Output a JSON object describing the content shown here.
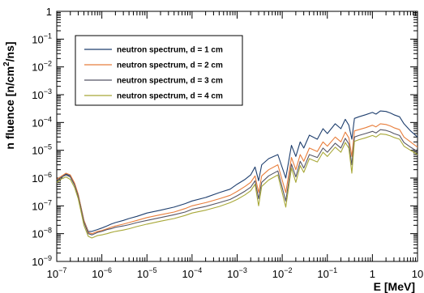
{
  "chart_data": {
    "type": "line",
    "title": "",
    "xlabel": "E [MeV]",
    "ylabel_parts": [
      "n fluence [n/cm",
      "2",
      "/ns]"
    ],
    "x_scale": "log",
    "y_scale": "log",
    "xlim": [
      1e-07,
      10
    ],
    "ylim": [
      1e-09,
      1
    ],
    "x_ticks": [
      {
        "base": "10",
        "exp": "−7"
      },
      {
        "base": "10",
        "exp": "−6"
      },
      {
        "base": "10",
        "exp": "−5"
      },
      {
        "base": "10",
        "exp": "−4"
      },
      {
        "base": "10",
        "exp": "−3"
      },
      {
        "base": "10",
        "exp": "−2"
      },
      {
        "base": "10",
        "exp": "−1"
      },
      {
        "base": "1",
        "exp": ""
      },
      {
        "base": "10",
        "exp": ""
      }
    ],
    "y_ticks": [
      {
        "base": "10",
        "exp": "−9"
      },
      {
        "base": "10",
        "exp": "−8"
      },
      {
        "base": "10",
        "exp": "−7"
      },
      {
        "base": "10",
        "exp": "−6"
      },
      {
        "base": "10",
        "exp": "−5"
      },
      {
        "base": "10",
        "exp": "−4"
      },
      {
        "base": "10",
        "exp": "−3"
      },
      {
        "base": "10",
        "exp": "−2"
      },
      {
        "base": "10",
        "exp": "−1"
      },
      {
        "base": "1",
        "exp": ""
      }
    ],
    "grid": false,
    "legend_position": "top-left",
    "series": [
      {
        "name": "neutron spectrum, d = 1 cm",
        "color": "#1f3f6e",
        "x": [
          1e-07,
          1.3e-07,
          1.6e-07,
          2e-07,
          2.5e-07,
          3e-07,
          3.5e-07,
          4e-07,
          5e-07,
          6e-07,
          8e-07,
          1e-06,
          1.3e-06,
          1.6e-06,
          2e-06,
          3e-06,
          4e-06,
          6e-06,
          1e-05,
          2e-05,
          4e-05,
          7e-05,
          0.0001,
          0.0002,
          0.0004,
          0.0007,
          0.001,
          0.0015,
          0.002,
          0.0025,
          0.003,
          0.0035,
          0.005,
          0.008,
          0.012,
          0.016,
          0.02,
          0.025,
          0.03,
          0.04,
          0.06,
          0.08,
          0.1,
          0.15,
          0.2,
          0.25,
          0.3,
          0.35,
          0.4,
          0.5,
          0.7,
          1,
          1.2,
          1.5,
          2,
          2.5,
          3,
          4,
          5,
          7,
          10
        ],
        "y": [
          8e-07,
          1.1e-06,
          1.4e-06,
          1.2e-06,
          6e-07,
          2.5e-07,
          8e-08,
          3e-08,
          1.2e-08,
          1.2e-08,
          1.4e-08,
          1.6e-08,
          1.9e-08,
          2.2e-08,
          2.5e-08,
          3e-08,
          3.5e-08,
          4.2e-08,
          5.5e-08,
          7e-08,
          9e-08,
          1.2e-07,
          1.5e-07,
          2e-07,
          3e-07,
          4e-07,
          6e-07,
          9e-07,
          1.3e-06,
          2.5e-06,
          8e-07,
          3e-06,
          5e-06,
          7e-06,
          1e-06,
          1.5e-05,
          6e-06,
          2e-05,
          1.2e-05,
          3.5e-05,
          2.5e-05,
          6e-05,
          4e-05,
          9e-05,
          6e-05,
          0.00013,
          8e-05,
          2.5e-05,
          0.00014,
          0.00016,
          0.00019,
          0.00023,
          0.0002,
          0.00026,
          0.00025,
          0.00022,
          0.00019,
          0.00016,
          9e-05,
          5e-05,
          3e-05
        ]
      },
      {
        "name": "neutron spectrum, d = 2 cm",
        "color": "#e87e3c",
        "x": [
          1e-07,
          1.3e-07,
          1.6e-07,
          2e-07,
          2.5e-07,
          3e-07,
          3.5e-07,
          4e-07,
          5e-07,
          6e-07,
          8e-07,
          1e-06,
          1.3e-06,
          1.6e-06,
          2e-06,
          3e-06,
          4e-06,
          6e-06,
          1e-05,
          2e-05,
          4e-05,
          7e-05,
          0.0001,
          0.0002,
          0.0004,
          0.0007,
          0.001,
          0.0015,
          0.002,
          0.0025,
          0.003,
          0.0035,
          0.005,
          0.008,
          0.012,
          0.016,
          0.02,
          0.025,
          0.03,
          0.04,
          0.06,
          0.08,
          0.1,
          0.15,
          0.2,
          0.25,
          0.3,
          0.35,
          0.4,
          0.5,
          0.7,
          1,
          1.2,
          1.5,
          2,
          2.5,
          3,
          4,
          5,
          7,
          10
        ],
        "y": [
          9e-07,
          1.2e-06,
          1.5e-06,
          1.3e-06,
          6.5e-07,
          2.6e-07,
          8e-08,
          3e-08,
          1.1e-08,
          1e-08,
          1.2e-08,
          1.3e-08,
          1.5e-08,
          1.7e-08,
          1.9e-08,
          2.2e-08,
          2.5e-08,
          3e-08,
          3.8e-08,
          4.8e-08,
          6e-08,
          8e-08,
          1e-07,
          1.3e-07,
          1.8e-07,
          2.4e-07,
          3.3e-07,
          5e-07,
          7e-07,
          1.2e-06,
          3e-07,
          1.2e-06,
          2e-06,
          3e-06,
          3e-07,
          5.5e-06,
          2e-06,
          7e-06,
          4e-06,
          1.2e-05,
          9e-06,
          2e-05,
          1.4e-05,
          3e-05,
          2e-05,
          4.5e-05,
          2.8e-05,
          6e-06,
          5e-05,
          5.5e-05,
          6.5e-05,
          8e-05,
          7e-05,
          9e-05,
          8.5e-05,
          7.5e-05,
          6.5e-05,
          5.5e-05,
          3e-05,
          2e-05,
          1.3e-05
        ]
      },
      {
        "name": "neutron spectrum, d = 3 cm",
        "color": "#555566",
        "x": [
          1e-07,
          1.3e-07,
          1.6e-07,
          2e-07,
          2.5e-07,
          3e-07,
          3.5e-07,
          4e-07,
          5e-07,
          6e-07,
          8e-07,
          1e-06,
          1.3e-06,
          1.6e-06,
          2e-06,
          3e-06,
          4e-06,
          6e-06,
          1e-05,
          2e-05,
          4e-05,
          7e-05,
          0.0001,
          0.0002,
          0.0004,
          0.0007,
          0.001,
          0.0015,
          0.002,
          0.0025,
          0.003,
          0.0035,
          0.005,
          0.008,
          0.012,
          0.016,
          0.02,
          0.025,
          0.03,
          0.04,
          0.06,
          0.08,
          0.1,
          0.15,
          0.2,
          0.25,
          0.3,
          0.35,
          0.4,
          0.5,
          0.7,
          1,
          1.2,
          1.5,
          2,
          2.5,
          3,
          4,
          5,
          7,
          10
        ],
        "y": [
          8e-07,
          1.1e-06,
          1.3e-06,
          1.1e-06,
          5.5e-07,
          2.2e-07,
          7e-08,
          2.6e-08,
          1e-08,
          9e-09,
          1.1e-08,
          1.2e-08,
          1.4e-08,
          1.5e-08,
          1.7e-08,
          1.9e-08,
          2.1e-08,
          2.5e-08,
          3e-08,
          3.8e-08,
          4.8e-08,
          6e-08,
          7.5e-08,
          9.5e-08,
          1.3e-07,
          1.7e-07,
          2.3e-07,
          3.4e-07,
          4.7e-07,
          8e-07,
          1.8e-07,
          7e-07,
          1.2e-06,
          1.8e-06,
          1.5e-07,
          3.2e-06,
          1.1e-06,
          4e-06,
          2.3e-06,
          7e-06,
          5.5e-06,
          1.2e-05,
          8.5e-06,
          1.8e-05,
          1.2e-05,
          2.7e-05,
          1.7e-05,
          3e-06,
          3e-05,
          3.4e-05,
          4e-05,
          4.8e-05,
          4.2e-05,
          5.5e-05,
          5.2e-05,
          4.6e-05,
          4e-05,
          3.4e-05,
          1.9e-05,
          1.3e-05,
          9e-06
        ]
      },
      {
        "name": "neutron spectrum, d = 4 cm",
        "color": "#a8a838",
        "x": [
          1e-07,
          1.3e-07,
          1.6e-07,
          2e-07,
          2.5e-07,
          3e-07,
          3.5e-07,
          4e-07,
          5e-07,
          6e-07,
          8e-07,
          1e-06,
          1.3e-06,
          1.6e-06,
          2e-06,
          3e-06,
          4e-06,
          6e-06,
          1e-05,
          2e-05,
          4e-05,
          7e-05,
          0.0001,
          0.0002,
          0.0004,
          0.0007,
          0.001,
          0.0015,
          0.002,
          0.0025,
          0.003,
          0.0035,
          0.005,
          0.008,
          0.012,
          0.016,
          0.02,
          0.025,
          0.03,
          0.04,
          0.06,
          0.08,
          0.1,
          0.15,
          0.2,
          0.25,
          0.3,
          0.35,
          0.4,
          0.5,
          0.7,
          1,
          1.2,
          1.5,
          2,
          2.5,
          3,
          4,
          5,
          7,
          10
        ],
        "y": [
          7e-07,
          9.5e-07,
          1.1e-06,
          9e-07,
          4.5e-07,
          1.8e-07,
          5.5e-08,
          2e-08,
          8e-09,
          7e-09,
          8.5e-09,
          9e-09,
          1e-08,
          1.1e-08,
          1.2e-08,
          1.35e-08,
          1.5e-08,
          1.8e-08,
          2.2e-08,
          2.8e-08,
          3.5e-08,
          4.5e-08,
          5.5e-08,
          7e-08,
          9.5e-08,
          1.3e-07,
          1.7e-07,
          2.5e-07,
          3.5e-07,
          6e-07,
          1e-07,
          5e-07,
          8.5e-07,
          1.3e-06,
          9e-08,
          2.3e-06,
          7e-07,
          2.8e-06,
          1.6e-06,
          5e-06,
          3.8e-06,
          8.5e-06,
          6e-06,
          1.3e-05,
          8.5e-06,
          1.9e-05,
          1.2e-05,
          1.5e-06,
          2.1e-05,
          2.4e-05,
          2.8e-05,
          3.4e-05,
          3e-05,
          3.9e-05,
          3.7e-05,
          3.3e-05,
          2.9e-05,
          2.5e-05,
          1.4e-05,
          1e-05,
          7e-06
        ]
      }
    ]
  }
}
